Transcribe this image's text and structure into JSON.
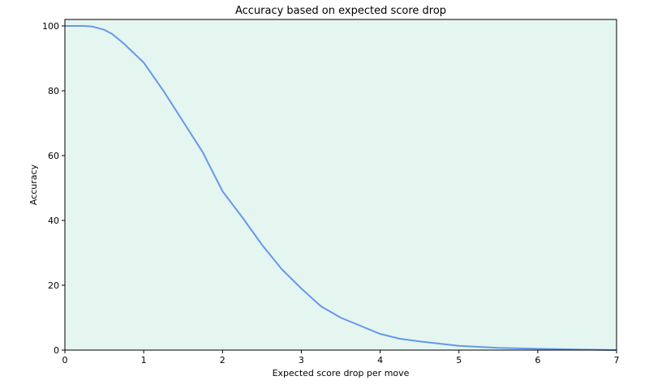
{
  "chart_data": {
    "type": "line",
    "title": "Accuracy based on expected score drop",
    "x_label": "Expected score drop per move",
    "y_label": "Accuracy",
    "x": [
      0,
      0.25,
      0.35,
      0.5,
      0.6,
      0.75,
      1,
      1.25,
      1.5,
      1.75,
      2,
      2.25,
      2.5,
      2.75,
      3,
      3.25,
      3.5,
      3.75,
      4,
      4.25,
      4.5,
      4.75,
      5,
      5.5,
      6,
      6.5,
      7
    ],
    "series": [
      {
        "name": "Accuracy",
        "color": "#6499e9",
        "values": [
          100,
          100,
          99.8,
          98.8,
          97.5,
          94.5,
          88.7,
          80,
          70.5,
          61,
          49,
          41,
          32.5,
          25,
          19,
          13.5,
          10,
          7.5,
          5,
          3.5,
          2.7,
          2,
          1.3,
          0.7,
          0.4,
          0.2,
          0
        ]
      }
    ],
    "background": "#e5f5f0",
    "xlim": [
      0,
      7
    ],
    "xticks": [
      0,
      1,
      2,
      3,
      4,
      5,
      6,
      7
    ],
    "ylim": [
      0,
      102
    ],
    "yticks": [
      0,
      20,
      40,
      60,
      80,
      100
    ],
    "grid": false
  }
}
